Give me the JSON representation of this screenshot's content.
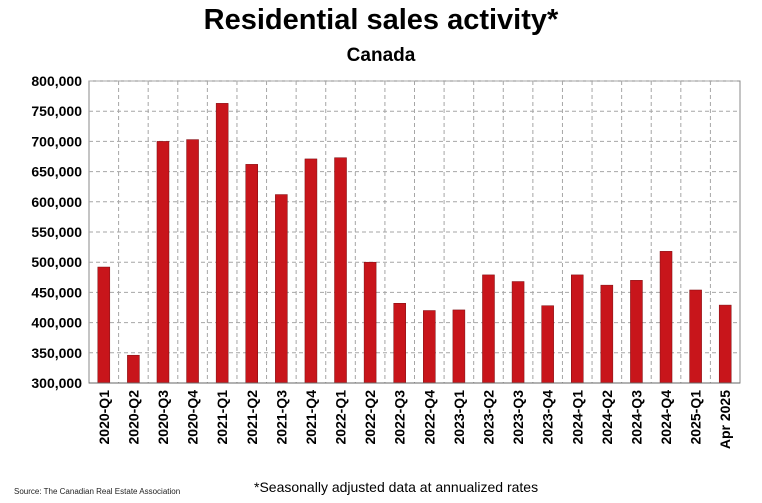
{
  "chart_data": {
    "type": "bar",
    "title": "Residential sales activity*",
    "subtitle": "Canada",
    "xlabel": "",
    "ylabel": "",
    "ylim": [
      300000,
      800000
    ],
    "yticks": [
      300000,
      350000,
      400000,
      450000,
      500000,
      550000,
      600000,
      650000,
      700000,
      750000,
      800000
    ],
    "ytick_labels": [
      "300,000",
      "350,000",
      "400,000",
      "450,000",
      "500,000",
      "550,000",
      "600,000",
      "650,000",
      "700,000",
      "750,000",
      "800,000"
    ],
    "categories": [
      "2020-Q1",
      "2020-Q2",
      "2020-Q3",
      "2020-Q4",
      "2021-Q1",
      "2021-Q2",
      "2021-Q3",
      "2021-Q4",
      "2022-Q1",
      "2022-Q2",
      "2022-Q3",
      "2022-Q4",
      "2023-Q1",
      "2023-Q2",
      "2023-Q3",
      "2023-Q4",
      "2024-Q1",
      "2024-Q2",
      "2024-Q3",
      "2024-Q4",
      "2025-Q1",
      "Apr 2025"
    ],
    "values": [
      492000,
      346000,
      700000,
      703000,
      763000,
      662000,
      612000,
      671000,
      673000,
      500000,
      432000,
      420000,
      421000,
      479000,
      468000,
      428000,
      479000,
      462000,
      470000,
      518000,
      454000,
      429000
    ],
    "bar_color": "#c8151b",
    "grid": true,
    "legend": "none",
    "source": "Source: The Canadian Real Estate Association",
    "footnote": "*Seasonally adjusted data at annualized rates"
  }
}
